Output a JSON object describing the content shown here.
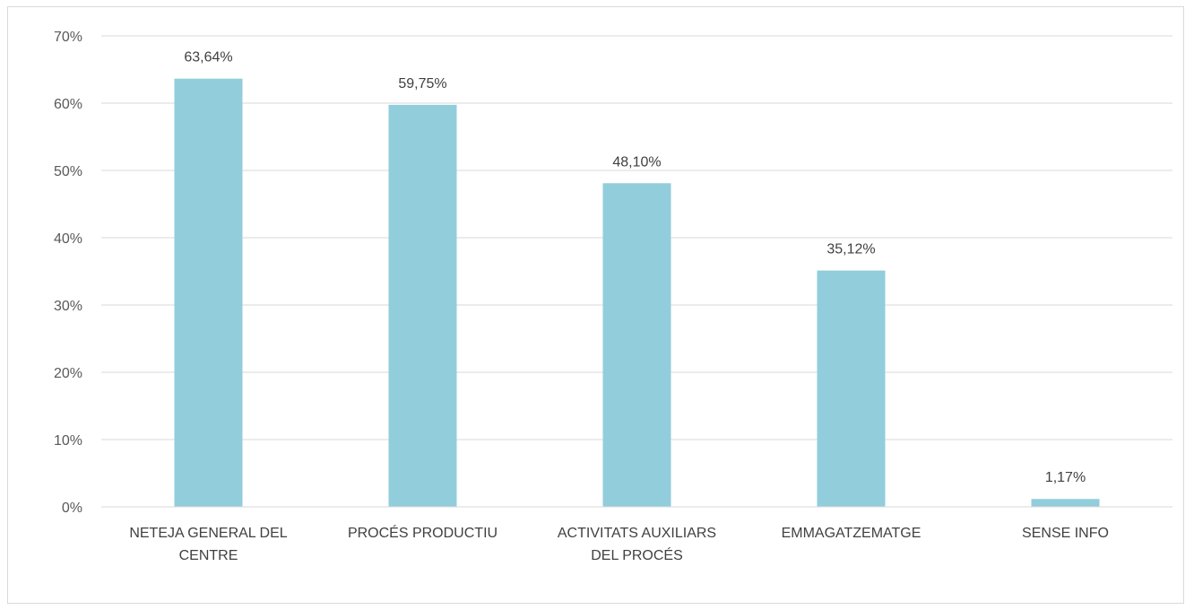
{
  "chart_data": {
    "type": "bar",
    "title": "",
    "xlabel": "",
    "ylabel": "",
    "categories": [
      [
        "NETEJA GENERAL DEL",
        "CENTRE"
      ],
      [
        "PROCÉS PRODUCTIU"
      ],
      [
        "ACTIVITATS AUXILIARS",
        "DEL PROCÉS"
      ],
      [
        "EMMAGATZEMATGE"
      ],
      [
        "SENSE INFO"
      ]
    ],
    "values": [
      63.64,
      59.75,
      48.1,
      35.12,
      1.17
    ],
    "data_labels": [
      "63,64%",
      "59,75%",
      "48,10%",
      "35,12%",
      "1,17%"
    ],
    "y_ticks": [
      {
        "value": 0,
        "label": "0%"
      },
      {
        "value": 10,
        "label": "10%"
      },
      {
        "value": 20,
        "label": "20%"
      },
      {
        "value": 30,
        "label": "30%"
      },
      {
        "value": 40,
        "label": "40%"
      },
      {
        "value": 50,
        "label": "50%"
      },
      {
        "value": 60,
        "label": "60%"
      },
      {
        "value": 70,
        "label": "70%"
      }
    ],
    "ylim": [
      0,
      70
    ],
    "grid": true,
    "legend": "none",
    "colors": {
      "bar": "#92CDDC",
      "grid": "#D9D9D9",
      "axis": "#D9D9D9",
      "tick_text": "#595959",
      "label_text": "#404040"
    }
  }
}
